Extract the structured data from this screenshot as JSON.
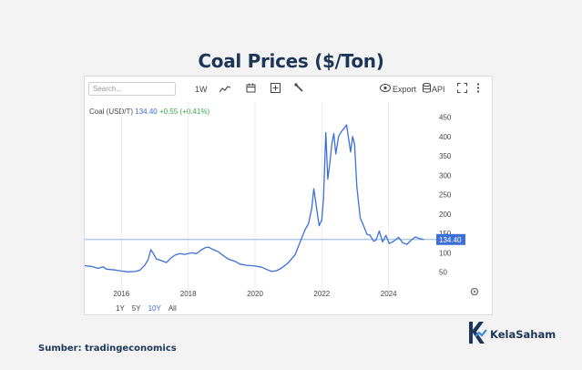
{
  "title": "Coal Prices ($/Ton)",
  "toolbar": {
    "search_placeholder": "Search...",
    "interval": "1W",
    "export_label": "Export",
    "api_label": "API"
  },
  "ticker": {
    "name": "Coal (USD/T)",
    "value": "134.40",
    "change": "+0.55 (+0.41%)"
  },
  "ranges": [
    "1Y",
    "5Y",
    "10Y",
    "All"
  ],
  "active_range": "10Y",
  "source": "Sumber: tradingeconomics",
  "brand": "KelaSaham",
  "colors": {
    "line": "#3c6fd8",
    "title": "#1d3557",
    "price_label_bg": "#3c6fd8",
    "change": "#3aa845"
  },
  "chart_data": {
    "type": "line",
    "title": "Coal Prices ($/Ton)",
    "series_name": "Coal (USD/T)",
    "y_ticks": [
      50,
      100,
      150,
      200,
      250,
      300,
      350,
      400,
      450
    ],
    "x_ticks": [
      2016,
      2018,
      2020,
      2022,
      2024
    ],
    "ylim": [
      0,
      470
    ],
    "xlim": [
      2014.9,
      2025.4
    ],
    "y_axis_position": "right",
    "grid": "vertical",
    "last_price": "134.40",
    "reference_line": 134.4,
    "points": [
      [
        2014.9,
        67
      ],
      [
        2015.1,
        65
      ],
      [
        2015.3,
        60
      ],
      [
        2015.45,
        64
      ],
      [
        2015.55,
        58
      ],
      [
        2015.8,
        56
      ],
      [
        2016.0,
        53
      ],
      [
        2016.2,
        51
      ],
      [
        2016.4,
        52
      ],
      [
        2016.55,
        55
      ],
      [
        2016.7,
        68
      ],
      [
        2016.8,
        83
      ],
      [
        2016.88,
        108
      ],
      [
        2016.95,
        99
      ],
      [
        2017.05,
        84
      ],
      [
        2017.2,
        80
      ],
      [
        2017.35,
        75
      ],
      [
        2017.5,
        88
      ],
      [
        2017.6,
        94
      ],
      [
        2017.75,
        98
      ],
      [
        2017.9,
        96
      ],
      [
        2018.1,
        100
      ],
      [
        2018.25,
        98
      ],
      [
        2018.4,
        108
      ],
      [
        2018.5,
        113
      ],
      [
        2018.6,
        115
      ],
      [
        2018.75,
        108
      ],
      [
        2018.9,
        103
      ],
      [
        2019.0,
        96
      ],
      [
        2019.2,
        84
      ],
      [
        2019.4,
        78
      ],
      [
        2019.55,
        71
      ],
      [
        2019.75,
        68
      ],
      [
        2020.0,
        66
      ],
      [
        2020.2,
        63
      ],
      [
        2020.35,
        57
      ],
      [
        2020.5,
        52
      ],
      [
        2020.65,
        54
      ],
      [
        2020.8,
        61
      ],
      [
        2021.0,
        75
      ],
      [
        2021.2,
        95
      ],
      [
        2021.35,
        128
      ],
      [
        2021.5,
        160
      ],
      [
        2021.6,
        175
      ],
      [
        2021.7,
        215
      ],
      [
        2021.76,
        265
      ],
      [
        2021.82,
        230
      ],
      [
        2021.92,
        170
      ],
      [
        2022.0,
        185
      ],
      [
        2022.05,
        240
      ],
      [
        2022.12,
        410
      ],
      [
        2022.18,
        290
      ],
      [
        2022.24,
        330
      ],
      [
        2022.3,
        380
      ],
      [
        2022.36,
        408
      ],
      [
        2022.42,
        355
      ],
      [
        2022.5,
        400
      ],
      [
        2022.58,
        412
      ],
      [
        2022.66,
        420
      ],
      [
        2022.74,
        430
      ],
      [
        2022.8,
        395
      ],
      [
        2022.86,
        360
      ],
      [
        2022.92,
        400
      ],
      [
        2022.98,
        380
      ],
      [
        2023.05,
        270
      ],
      [
        2023.15,
        190
      ],
      [
        2023.25,
        170
      ],
      [
        2023.35,
        148
      ],
      [
        2023.45,
        145
      ],
      [
        2023.55,
        130
      ],
      [
        2023.62,
        132
      ],
      [
        2023.72,
        156
      ],
      [
        2023.82,
        128
      ],
      [
        2023.92,
        145
      ],
      [
        2024.02,
        124
      ],
      [
        2024.15,
        130
      ],
      [
        2024.3,
        140
      ],
      [
        2024.42,
        126
      ],
      [
        2024.55,
        122
      ],
      [
        2024.68,
        133
      ],
      [
        2024.8,
        141
      ],
      [
        2024.92,
        137
      ],
      [
        2025.05,
        134.4
      ]
    ]
  }
}
